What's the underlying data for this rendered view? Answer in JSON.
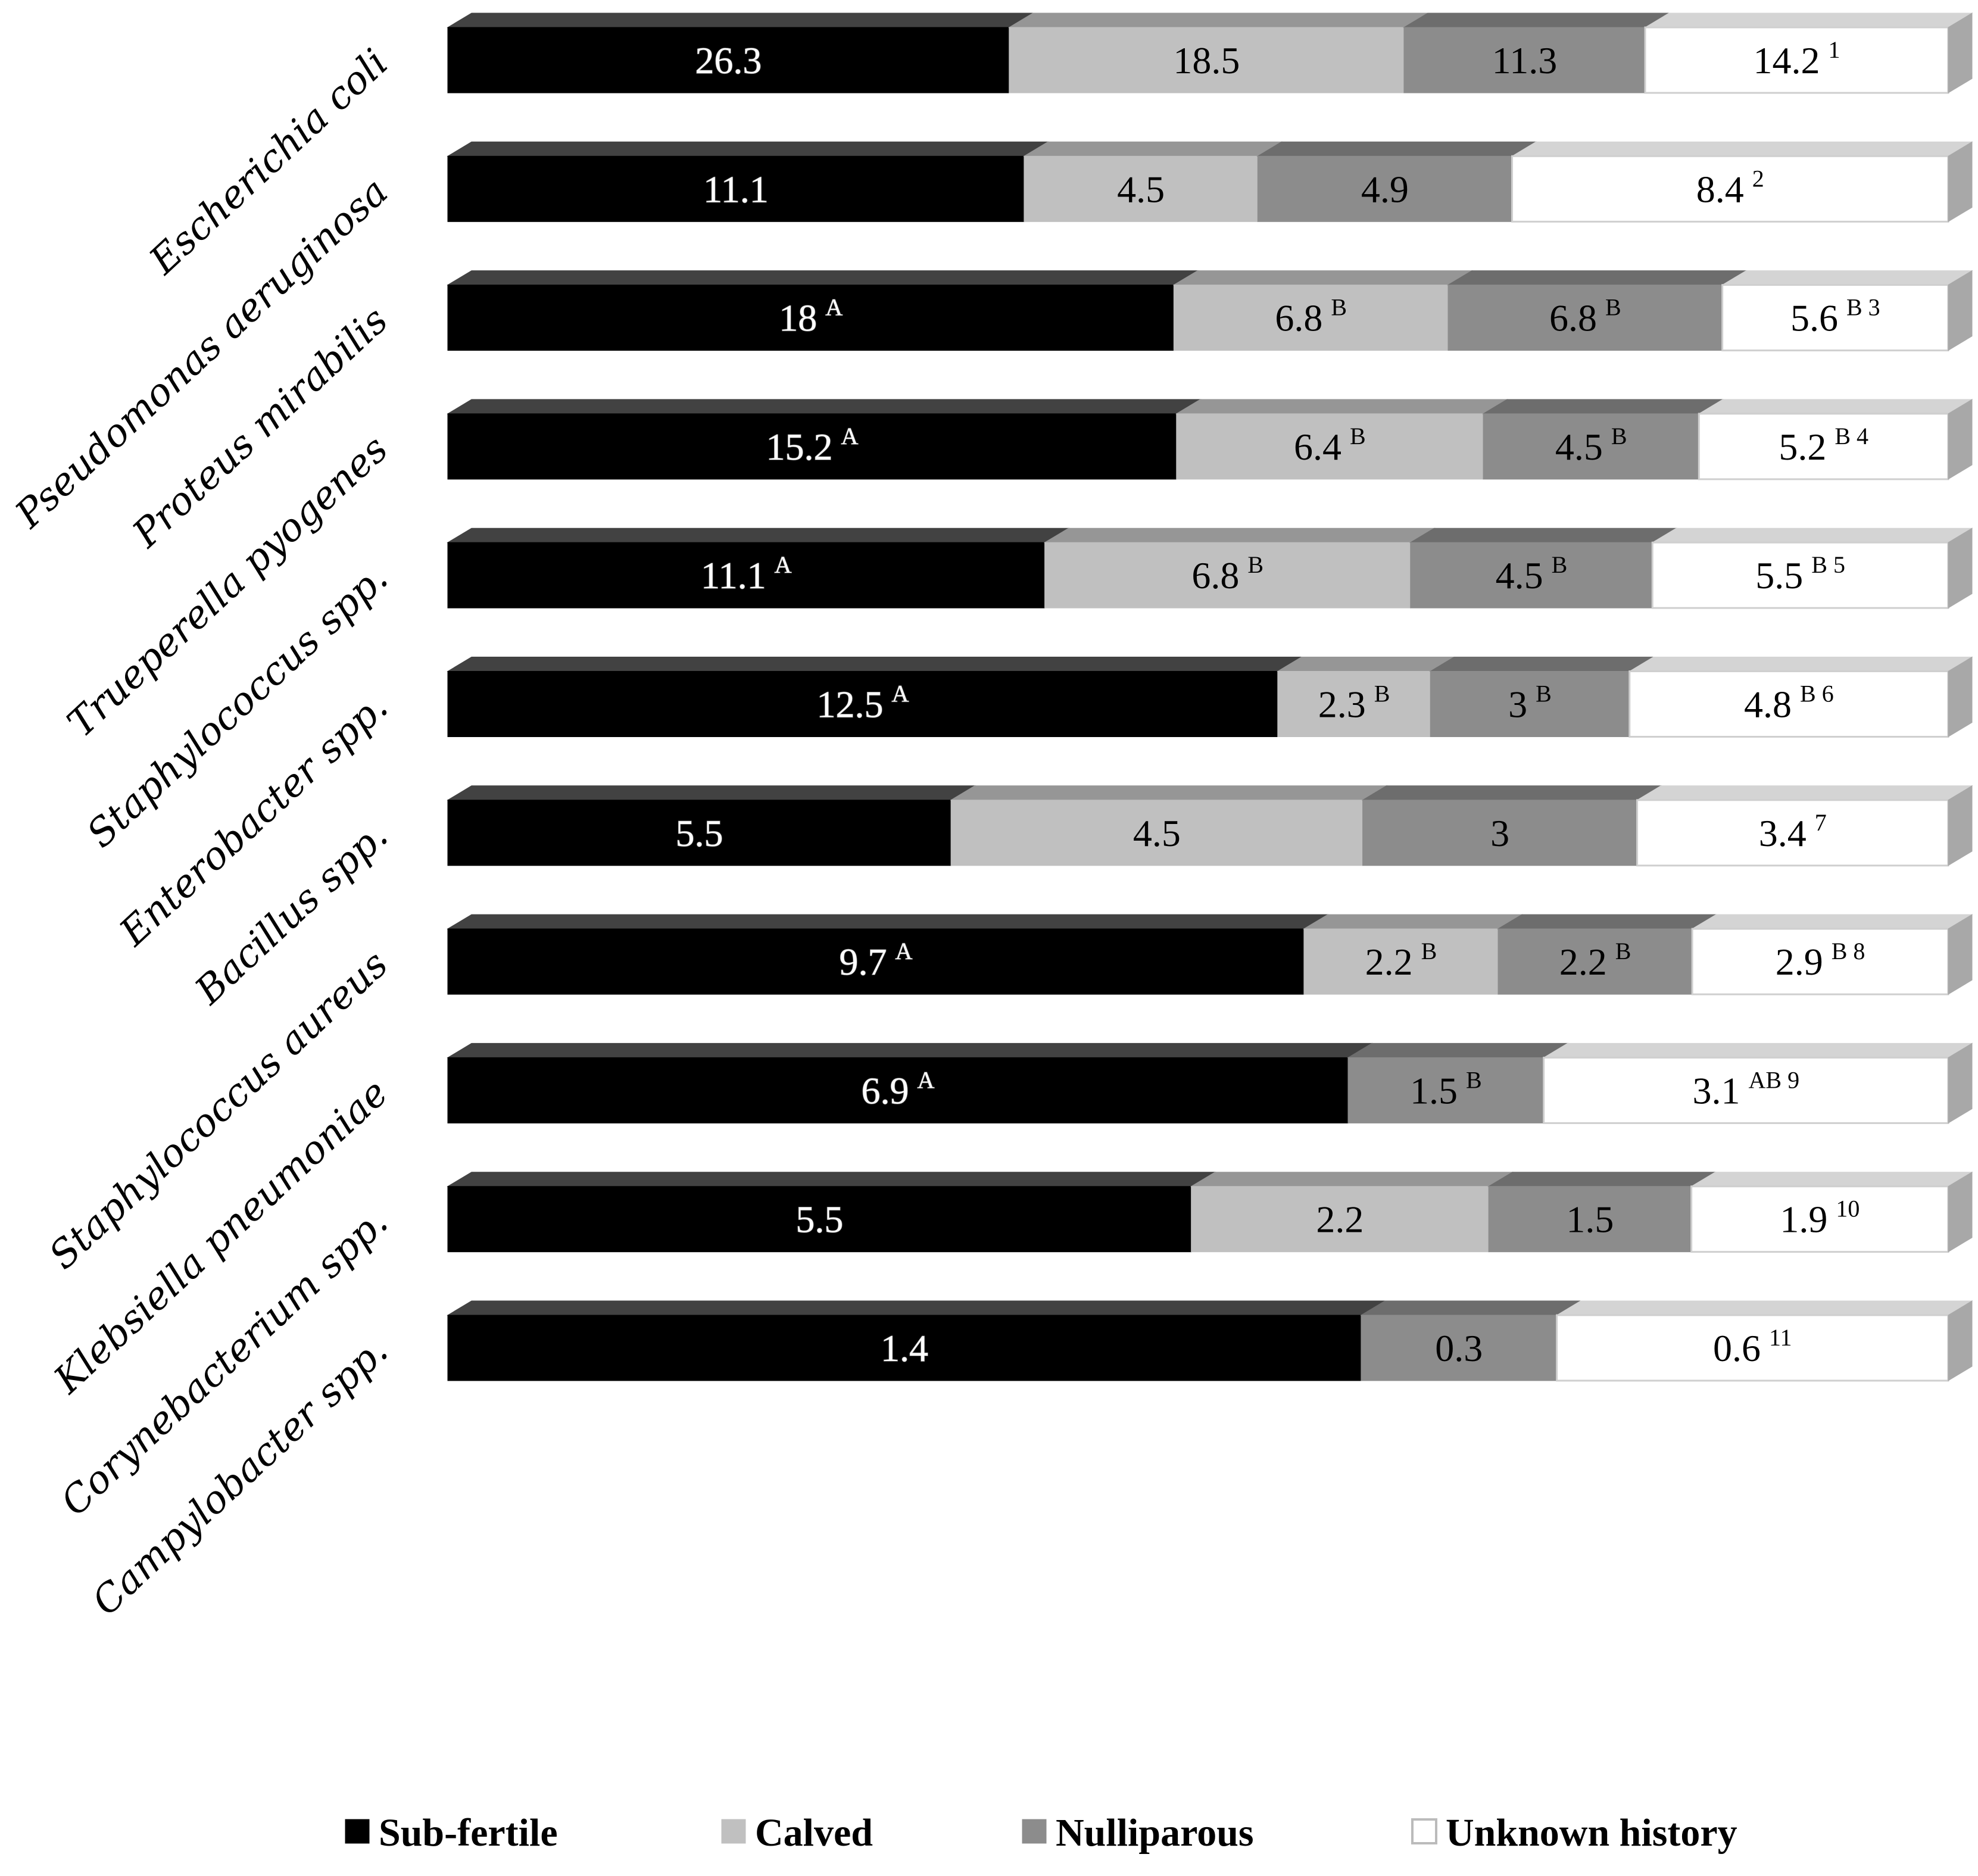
{
  "chart_data": {
    "type": "bar",
    "orientation": "horizontal",
    "stacked": "100%",
    "grid": false,
    "legend_position": "bottom",
    "categories": [
      "Escherichia  coli",
      "Pseudomonas aeruginosa",
      "Proteus mirabilis",
      "Trueperella pyogenes",
      "Staphylococcus spp.",
      "Enterobacter spp.",
      "Bacillus spp.",
      "Staphylococcus aureus",
      "Klebsiella pneumoniae",
      "Corynebacterium spp.",
      "Campylobacter spp."
    ],
    "series": [
      {
        "name": "Sub-fertile",
        "color": "#000000",
        "values": [
          26.3,
          11.1,
          18,
          15.2,
          11.1,
          12.5,
          5.5,
          9.7,
          6.9,
          5.5,
          1.4
        ],
        "superscripts": [
          "",
          "",
          "A",
          "A",
          "A",
          "A",
          "",
          "A",
          "A",
          "",
          ""
        ]
      },
      {
        "name": "Calved",
        "color": "#c0c0c0",
        "values": [
          18.5,
          4.5,
          6.8,
          6.4,
          6.8,
          2.3,
          4.5,
          2.2,
          null,
          2.2,
          null
        ],
        "superscripts": [
          "",
          "",
          "B",
          "B",
          "B",
          "B",
          "",
          "B",
          "",
          "",
          ""
        ]
      },
      {
        "name": "Nulliparous",
        "color": "#8c8c8c",
        "values": [
          11.3,
          4.9,
          6.8,
          4.5,
          4.5,
          3,
          3,
          2.2,
          1.5,
          1.5,
          0.3
        ],
        "superscripts": [
          "",
          "",
          "B",
          "B",
          "B",
          "B",
          "",
          "B",
          "B",
          "",
          ""
        ]
      },
      {
        "name": "Unknown history",
        "color": "#ffffff",
        "values": [
          14.2,
          8.4,
          5.6,
          5.2,
          5.5,
          4.8,
          3.4,
          2.9,
          3.1,
          1.9,
          0.6
        ],
        "superscripts": [
          "1",
          "2",
          "B 3",
          "B 4",
          "B 5",
          "B 6",
          "7",
          "B 8",
          "AB 9",
          "10",
          "11"
        ]
      }
    ],
    "legend": [
      "Sub-fertile",
      "Calved",
      "Nulliparous",
      "Unknown history"
    ]
  }
}
